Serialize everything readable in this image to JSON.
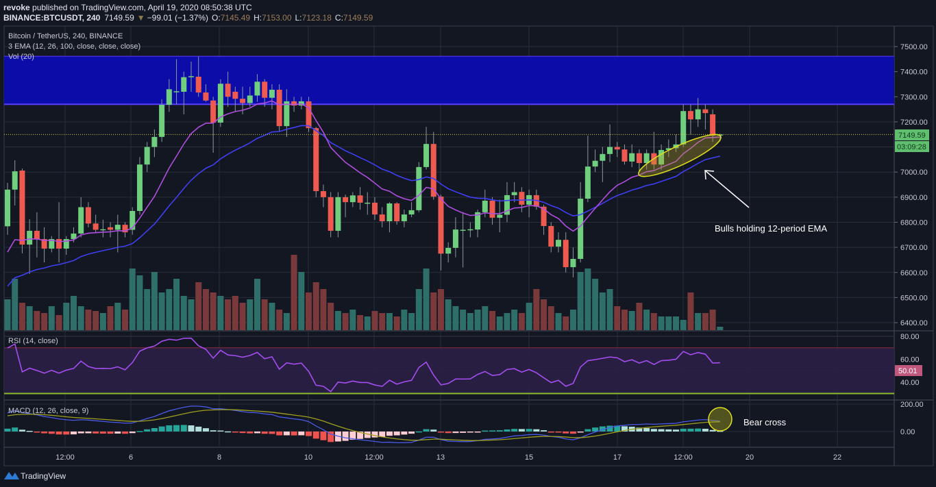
{
  "header": {
    "author": "revoke",
    "published": " published on TradingView.com, April 19, 2020 08:50:38 UTC",
    "symbol": "BINANCE:BTCUSDT, 240",
    "last": "7149.59",
    "change": "−99.01 (−1.37%)",
    "o_label": "O:",
    "o": "7145.49",
    "h_label": "H:",
    "h": "7153.00",
    "l_label": "L:",
    "l": "7123.18",
    "c_label": "C:",
    "c": "7149.59"
  },
  "legend": {
    "title": "Bitcoin / TetherUS, 240, BINANCE",
    "ema": "3 EMA (12, 26, 100, close, close, close)",
    "vol": "Vol (20)",
    "rsi": "RSI (14, close)",
    "macd": "MACD (12, 26, close, 9)"
  },
  "price_axis": {
    "ticks": [
      "7500.00",
      "7400.00",
      "7300.00",
      "7200.00",
      "7000.00",
      "6900.00",
      "6800.00",
      "6700.00",
      "6600.00",
      "6500.00",
      "6400.00"
    ],
    "last_price": "7149.59",
    "countdown": "03:09:28"
  },
  "rsi_axis": {
    "ticks": [
      "80.00",
      "60.00",
      "40.00"
    ],
    "current": "50.01"
  },
  "macd_axis": {
    "ticks": [
      "200.00",
      "0.00"
    ]
  },
  "time_axis": {
    "ticks": [
      "12:00",
      "6",
      "8",
      "10",
      "12:00",
      "13",
      "15",
      "17",
      "12:00",
      "20",
      "22"
    ]
  },
  "annotations": {
    "bulls": "Bulls holding 12-period EMA",
    "bear": "Bear cross"
  },
  "logo": "TradingView",
  "colors": {
    "background": "#131722",
    "up": "#6fcf7f",
    "down": "#ef5a50",
    "ema12": "#b04ee0",
    "ema26": "#3f3ff5",
    "zone": "#0c0ca8",
    "zone_border": "#5b3cff",
    "rsi": "#a44ef0",
    "macd": "#4b5ae8",
    "signal": "#a0a020",
    "highlight": "#e0e020"
  },
  "chart_data": {
    "type": "candlestick",
    "symbol": "BINANCE:BTCUSDT",
    "interval": "240",
    "ylim": [
      6380,
      7560
    ],
    "resistance_zone": [
      7270,
      7460
    ],
    "ohlc": [
      [
        6784,
        6957,
        6750,
        6930
      ],
      [
        6930,
        7047,
        6867,
        7003
      ],
      [
        7006,
        7014,
        6676,
        6711
      ],
      [
        6711,
        6812,
        6594,
        6766
      ],
      [
        6766,
        6840,
        6660,
        6733
      ],
      [
        6733,
        6780,
        6640,
        6695
      ],
      [
        6695,
        6745,
        6680,
        6733
      ],
      [
        6733,
        6880,
        6640,
        6695
      ],
      [
        6695,
        6745,
        6670,
        6733
      ],
      [
        6733,
        6780,
        6720,
        6755
      ],
      [
        6755,
        6900,
        6740,
        6860
      ],
      [
        6860,
        6880,
        6780,
        6795
      ],
      [
        6795,
        6830,
        6760,
        6770
      ],
      [
        6770,
        6810,
        6740,
        6772
      ],
      [
        6780,
        6800,
        6740,
        6770
      ],
      [
        6770,
        6830,
        6680,
        6790
      ],
      [
        6790,
        6800,
        6740,
        6760
      ],
      [
        6770,
        6860,
        6750,
        6845
      ],
      [
        6845,
        7060,
        6830,
        7030
      ],
      [
        7030,
        7120,
        7000,
        7100
      ],
      [
        7100,
        7170,
        7060,
        7140
      ],
      [
        7140,
        7290,
        7120,
        7268
      ],
      [
        7268,
        7370,
        7240,
        7330
      ],
      [
        7320,
        7450,
        7270,
        7322
      ],
      [
        7320,
        7400,
        7230,
        7378
      ],
      [
        7380,
        7440,
        7320,
        7382
      ],
      [
        7380,
        7460,
        7300,
        7317
      ],
      [
        7317,
        7350,
        7280,
        7285
      ],
      [
        7285,
        7300,
        7077,
        7197
      ],
      [
        7197,
        7370,
        7180,
        7352
      ],
      [
        7352,
        7400,
        7260,
        7300
      ],
      [
        7320,
        7340,
        7240,
        7292
      ],
      [
        7292,
        7340,
        7230,
        7275
      ],
      [
        7275,
        7340,
        7260,
        7305
      ],
      [
        7305,
        7390,
        7280,
        7360
      ],
      [
        7360,
        7370,
        7260,
        7296
      ],
      [
        7296,
        7350,
        7250,
        7328
      ],
      [
        7328,
        7350,
        7160,
        7183
      ],
      [
        7183,
        7330,
        7140,
        7282
      ],
      [
        7282,
        7300,
        7240,
        7265
      ],
      [
        7265,
        7300,
        7250,
        7282
      ],
      [
        7282,
        7300,
        7160,
        7175
      ],
      [
        7175,
        7180,
        6900,
        6924
      ],
      [
        6924,
        6950,
        6860,
        6900
      ],
      [
        6900,
        6920,
        6740,
        6766
      ],
      [
        6766,
        6920,
        6740,
        6900
      ],
      [
        6900,
        6910,
        6820,
        6880
      ],
      [
        6880,
        6920,
        6860,
        6907
      ],
      [
        6907,
        6940,
        6850,
        6878
      ],
      [
        6878,
        6920,
        6830,
        6878
      ],
      [
        6878,
        6900,
        6810,
        6831
      ],
      [
        6831,
        6860,
        6780,
        6804
      ],
      [
        6804,
        6880,
        6760,
        6875
      ],
      [
        6875,
        6880,
        6790,
        6804
      ],
      [
        6804,
        6850,
        6780,
        6831
      ],
      [
        6831,
        6880,
        6820,
        6848
      ],
      [
        6848,
        7040,
        6840,
        7020
      ],
      [
        7020,
        7180,
        7010,
        7112
      ],
      [
        7112,
        7160,
        6890,
        6902
      ],
      [
        6902,
        6910,
        6608,
        6675
      ],
      [
        6675,
        6720,
        6640,
        6698
      ],
      [
        6698,
        6820,
        6660,
        6771
      ],
      [
        6770,
        6840,
        6620,
        6770
      ],
      [
        6770,
        6800,
        6740,
        6772
      ],
      [
        6771,
        6850,
        6740,
        6840
      ],
      [
        6840,
        6930,
        6820,
        6886
      ],
      [
        6886,
        6900,
        6790,
        6818
      ],
      [
        6818,
        6890,
        6760,
        6830
      ],
      [
        6830,
        6960,
        6800,
        6908
      ],
      [
        6908,
        6960,
        6880,
        6920
      ],
      [
        6921,
        6940,
        6840,
        6870
      ],
      [
        6870,
        6930,
        6820,
        6908
      ],
      [
        6908,
        6930,
        6850,
        6862
      ],
      [
        6862,
        6870,
        6750,
        6785
      ],
      [
        6785,
        6800,
        6680,
        6703
      ],
      [
        6703,
        6760,
        6680,
        6730
      ],
      [
        6730,
        6760,
        6600,
        6621
      ],
      [
        6621,
        6700,
        6580,
        6654
      ],
      [
        6654,
        6960,
        6640,
        6894
      ],
      [
        6894,
        7145,
        6880,
        7022
      ],
      [
        7022,
        7090,
        7000,
        7045
      ],
      [
        7045,
        7100,
        6960,
        7072
      ],
      [
        7072,
        7190,
        7040,
        7100
      ],
      [
        7100,
        7120,
        7060,
        7090
      ],
      [
        7090,
        7110,
        7030,
        7042
      ],
      [
        7042,
        7110,
        7020,
        7075
      ],
      [
        7075,
        7090,
        7000,
        7036
      ],
      [
        7036,
        7090,
        7010,
        7075
      ],
      [
        7075,
        7160,
        7010,
        7030
      ],
      [
        7030,
        7110,
        7010,
        7088
      ],
      [
        7088,
        7130,
        7060,
        7095
      ],
      [
        7095,
        7150,
        7080,
        7110
      ],
      [
        7110,
        7270,
        7100,
        7243
      ],
      [
        7243,
        7270,
        7150,
        7210
      ],
      [
        7210,
        7295,
        7180,
        7250
      ],
      [
        7250,
        7270,
        7170,
        7235
      ],
      [
        7230,
        7250,
        7120,
        7145
      ],
      [
        7145.49,
        7153,
        7123.18,
        7149.59
      ]
    ],
    "volume_relative": [
      45,
      75,
      40,
      35,
      28,
      25,
      35,
      22,
      40,
      50,
      35,
      30,
      28,
      25,
      35,
      40,
      30,
      90,
      80,
      60,
      85,
      55,
      60,
      75,
      50,
      45,
      70,
      60,
      55,
      50,
      45,
      50,
      40,
      45,
      75,
      45,
      40,
      30,
      25,
      110,
      85,
      55,
      70,
      60,
      40,
      28,
      25,
      30,
      22,
      20,
      28,
      25,
      25,
      20,
      30,
      25,
      60,
      90,
      55,
      60,
      45,
      35,
      30,
      25,
      30,
      35,
      28,
      20,
      25,
      30,
      25,
      40,
      60,
      45,
      35,
      25,
      20,
      30,
      85,
      90,
      75,
      55,
      60,
      35,
      30,
      28,
      40,
      30,
      25,
      20,
      20,
      20,
      15,
      55,
      25,
      25,
      30,
      5
    ],
    "ema_start": {
      "ema12": 6681,
      "ema26": 6545,
      "signal": 115
    },
    "rsi_levels": [
      70,
      30
    ],
    "rsi_ylim": [
      27,
      83
    ],
    "macd_ylim": [
      -110,
      220
    ]
  }
}
